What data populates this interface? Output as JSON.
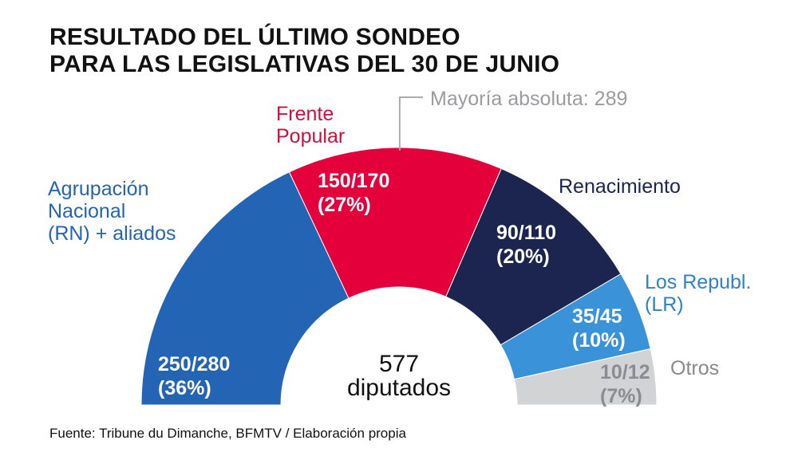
{
  "header": {
    "title_line1": "RESULTADO DEL ÚLTIMO SONDEO",
    "title_line2": "PARA LAS LEGISLATIVAS DEL 30 DE JUNIO"
  },
  "footer": {
    "source": "Fuente: Tribune du Dimanche, BFMTV / Elaboración propia"
  },
  "chart_data": {
    "type": "pie",
    "shape": "half-donut",
    "total_label_number": "577",
    "total_label_text": "diputados",
    "total_seats": 577,
    "majority_label": "Mayoría absoluta: 289",
    "majority_seats": 289,
    "series": [
      {
        "name_lines": [
          "Agrupación",
          "Nacional",
          "(RN) + aliados"
        ],
        "seats_range": "250/280",
        "pct_label": "(36%)",
        "share": 36,
        "color": "#2364b4",
        "name_color": "#2364b4",
        "value_color": "#ffffff"
      },
      {
        "name_lines": [
          "Frente",
          "Popular"
        ],
        "seats_range": "150/170",
        "pct_label": "(27%)",
        "share": 27,
        "color": "#e4003b",
        "name_color": "#d0103a",
        "value_color": "#ffffff"
      },
      {
        "name_lines": [
          "Renacimiento"
        ],
        "seats_range": "90/110",
        "pct_label": "(20%)",
        "share": 20,
        "color": "#1b2550",
        "name_color": "#1b2550",
        "value_color": "#ffffff"
      },
      {
        "name_lines": [
          "Los Republ.",
          "(LR)"
        ],
        "seats_range": "35/45",
        "pct_label": "(10%)",
        "share": 10,
        "color": "#3a93d8",
        "name_color": "#2e82c8",
        "value_color": "#ffffff"
      },
      {
        "name_lines": [
          "Otros"
        ],
        "seats_range": "10/12",
        "pct_label": "(7%)",
        "share": 7,
        "color": "#d2d3d5",
        "name_color": "#888a8d",
        "value_color": "#8b8c8f"
      }
    ]
  }
}
